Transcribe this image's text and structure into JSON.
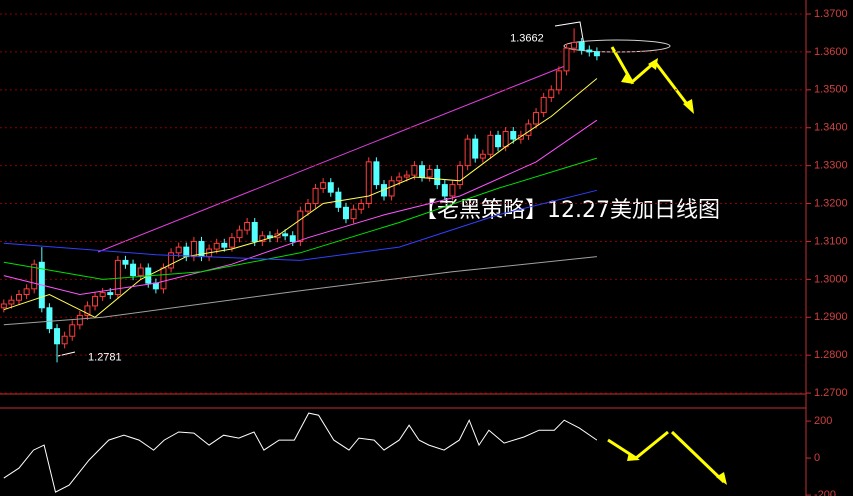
{
  "chart_data": [
    {
      "type": "candlestick",
      "title": "【老黑策略】12.27美加日线图",
      "xlim": [
        -0.5,
        105.5
      ],
      "ylim": [
        1.2687,
        1.3737
      ],
      "yticks": [
        {
          "value": 1.27,
          "label": "1.2700"
        },
        {
          "value": 1.28,
          "label": "1.2800"
        },
        {
          "value": 1.29,
          "label": "1.2900"
        },
        {
          "value": 1.3,
          "label": "1.3000"
        },
        {
          "value": 1.31,
          "label": "1.3100"
        },
        {
          "value": 1.32,
          "label": "1.3200"
        },
        {
          "value": 1.33,
          "label": "1.3300"
        },
        {
          "value": 1.34,
          "label": "1.3400"
        },
        {
          "value": 1.35,
          "label": "1.3500"
        },
        {
          "value": 1.36,
          "label": "1.3600"
        },
        {
          "value": 1.37,
          "label": "1.3700"
        }
      ],
      "grid": true,
      "up_color": "#ff3c3c",
      "down_color": "#54ffff",
      "open": [
        1.2925,
        1.2935,
        1.2945,
        1.296,
        1.2975,
        1.3045,
        1.2925,
        1.287,
        1.283,
        1.285,
        1.288,
        1.2905,
        1.293,
        1.2955,
        1.2965,
        1.296,
        1.305,
        1.304,
        1.301,
        1.303,
        1.299,
        1.2975,
        1.303,
        1.307,
        1.3085,
        1.306,
        1.31,
        1.306,
        1.308,
        1.3095,
        1.3085,
        1.311,
        1.313,
        1.315,
        1.31,
        1.3115,
        1.311,
        1.312,
        1.3115,
        1.31,
        1.318,
        1.32,
        1.324,
        1.3255,
        1.323,
        1.319,
        1.316,
        1.3185,
        1.32,
        1.331,
        1.325,
        1.322,
        1.326,
        1.327,
        1.3275,
        1.33,
        1.327,
        1.329,
        1.325,
        1.322,
        1.325,
        1.33,
        1.337,
        1.332,
        1.333,
        1.338,
        1.335,
        1.339,
        1.337,
        1.338,
        1.341,
        1.344,
        1.348,
        1.35,
        1.355,
        1.361,
        1.3625,
        1.3605,
        1.36
      ],
      "high": [
        1.2947,
        1.2957,
        1.2972,
        1.2987,
        1.3052,
        1.3085,
        1.2937,
        1.2882,
        1.2862,
        1.2892,
        1.2917,
        1.2942,
        1.2967,
        1.2977,
        1.2977,
        1.3062,
        1.3062,
        1.3052,
        1.3042,
        1.3042,
        1.3002,
        1.3042,
        1.3082,
        1.3097,
        1.3097,
        1.3112,
        1.3112,
        1.3092,
        1.3107,
        1.3107,
        1.3122,
        1.3142,
        1.3162,
        1.3162,
        1.3127,
        1.3127,
        1.3132,
        1.3132,
        1.3127,
        1.3192,
        1.3212,
        1.3252,
        1.3267,
        1.3267,
        1.3242,
        1.3202,
        1.3197,
        1.3212,
        1.3322,
        1.3322,
        1.3262,
        1.3272,
        1.3282,
        1.3287,
        1.3312,
        1.3312,
        1.3302,
        1.3302,
        1.3262,
        1.3262,
        1.3312,
        1.3382,
        1.3382,
        1.3342,
        1.3392,
        1.3392,
        1.3402,
        1.3402,
        1.3392,
        1.3422,
        1.3452,
        1.3492,
        1.3512,
        1.3562,
        1.3622,
        1.3662,
        1.3637,
        1.3617,
        1.3612
      ],
      "low": [
        1.2913,
        1.2923,
        1.2933,
        1.2948,
        1.2963,
        1.2913,
        1.2858,
        1.2781,
        1.2818,
        1.2838,
        1.2868,
        1.2893,
        1.2918,
        1.2943,
        1.2948,
        1.2948,
        1.3028,
        1.2998,
        1.2998,
        1.2978,
        1.2963,
        1.2963,
        1.3018,
        1.3058,
        1.3048,
        1.3048,
        1.3048,
        1.3048,
        1.3068,
        1.3073,
        1.3073,
        1.3098,
        1.3118,
        1.3088,
        1.3088,
        1.3098,
        1.3098,
        1.3103,
        1.3088,
        1.3088,
        1.3168,
        1.3188,
        1.3228,
        1.3218,
        1.3178,
        1.3148,
        1.3148,
        1.3173,
        1.3188,
        1.3238,
        1.3208,
        1.3208,
        1.3248,
        1.3258,
        1.3263,
        1.3258,
        1.3258,
        1.3238,
        1.3208,
        1.3208,
        1.3238,
        1.3288,
        1.3308,
        1.3308,
        1.3318,
        1.3338,
        1.3338,
        1.3358,
        1.3358,
        1.3368,
        1.3398,
        1.3428,
        1.3468,
        1.3488,
        1.3538,
        1.3598,
        1.3593,
        1.3588,
        1.3578
      ],
      "close": [
        1.2935,
        1.2945,
        1.296,
        1.2975,
        1.304,
        1.2925,
        1.287,
        1.283,
        1.285,
        1.288,
        1.2905,
        1.293,
        1.2955,
        1.2965,
        1.296,
        1.305,
        1.304,
        1.301,
        1.303,
        1.299,
        1.2975,
        1.303,
        1.307,
        1.3085,
        1.306,
        1.31,
        1.306,
        1.308,
        1.3095,
        1.3085,
        1.311,
        1.313,
        1.315,
        1.31,
        1.3115,
        1.311,
        1.312,
        1.3115,
        1.31,
        1.318,
        1.32,
        1.324,
        1.3255,
        1.323,
        1.319,
        1.316,
        1.3185,
        1.32,
        1.331,
        1.325,
        1.322,
        1.326,
        1.327,
        1.3275,
        1.33,
        1.327,
        1.329,
        1.325,
        1.322,
        1.325,
        1.33,
        1.337,
        1.332,
        1.333,
        1.338,
        1.335,
        1.339,
        1.337,
        1.338,
        1.341,
        1.344,
        1.348,
        1.35,
        1.355,
        1.361,
        1.3625,
        1.3605,
        1.36,
        1.359
      ],
      "series": [
        {
          "color": "#ffff54",
          "x": [
            0,
            6,
            12,
            18,
            24,
            30,
            36,
            42,
            48,
            54,
            60,
            66,
            72,
            78
          ],
          "values": [
            1.292,
            1.296,
            1.29,
            1.3,
            1.306,
            1.308,
            1.3115,
            1.32,
            1.322,
            1.327,
            1.326,
            1.335,
            1.343,
            1.353
          ]
        },
        {
          "color": "#ff54ff",
          "x": [
            0,
            10,
            20,
            30,
            40,
            50,
            60,
            70,
            78
          ],
          "values": [
            1.301,
            1.296,
            1.299,
            1.304,
            1.311,
            1.317,
            1.322,
            1.331,
            1.342
          ]
        },
        {
          "color": "#00e000",
          "x": [
            0,
            13,
            26,
            39,
            52,
            65,
            78
          ],
          "values": [
            1.3045,
            1.3,
            1.302,
            1.307,
            1.315,
            1.324,
            1.332
          ]
        },
        {
          "color": "#3040ff",
          "x": [
            0,
            20,
            39,
            52,
            65,
            78
          ],
          "values": [
            1.3095,
            1.3065,
            1.305,
            1.3085,
            1.317,
            1.3235
          ]
        },
        {
          "color": "#a0a0a0",
          "x": [
            0,
            13,
            39,
            59,
            78
          ],
          "values": [
            1.288,
            1.29,
            1.297,
            1.302,
            1.306
          ]
        }
      ],
      "annotations": [
        1.3662,
        1.2781
      ]
    },
    {
      "type": "line",
      "xlim": [
        -0.5,
        105.5
      ],
      "ylim": [
        -205,
        260
      ],
      "yticks": [
        200,
        0,
        -200
      ],
      "series": [
        {
          "color": "#ffffff",
          "x": [
            0,
            2.0,
            3.9,
            5.3,
            6.8,
            8.6,
            11.2,
            13.8,
            15.8,
            17.8,
            19.7,
            21.1,
            23.0,
            25.0,
            27.0,
            28.9,
            30.9,
            32.9,
            34.2,
            36.2,
            38.2,
            40.1,
            41.4,
            43.4,
            45.4,
            46.7,
            48.7,
            50.0,
            52.0,
            53.3,
            54.6,
            55.9,
            57.9,
            59.9,
            61.2,
            62.5,
            63.8,
            65.8,
            68.4,
            70.4,
            72.4,
            73.7,
            75.7,
            78.0
          ],
          "values": [
            -108,
            -54,
            43,
            70,
            -184,
            -146,
            -11,
            97,
            124,
            97,
            43,
            97,
            141,
            135,
            70,
            124,
            108,
            141,
            43,
            97,
            97,
            243,
            232,
            97,
            43,
            108,
            97,
            43,
            97,
            178,
            97,
            70,
            43,
            97,
            205,
            70,
            151,
            81,
            114,
            151,
            151,
            205,
            162,
            97
          ]
        }
      ]
    }
  ]
}
